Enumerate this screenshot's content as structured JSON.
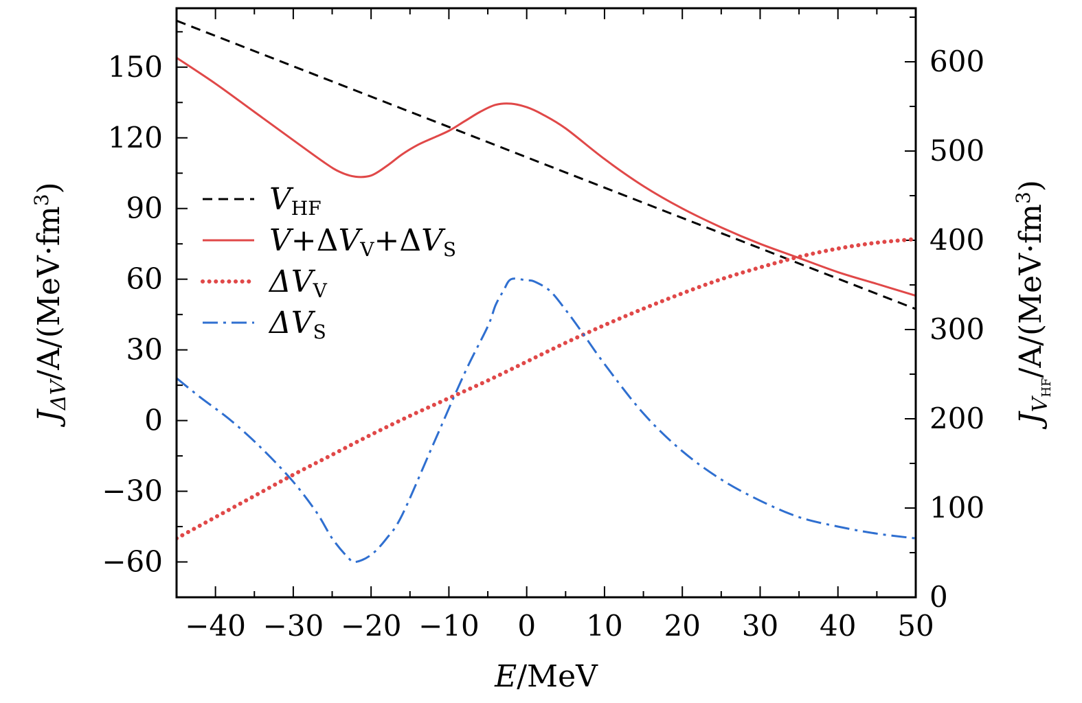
{
  "chart_data": {
    "type": "line",
    "title": "",
    "x": {
      "label_var": "E",
      "label_unit": "/MeV",
      "range": [
        -45,
        50
      ],
      "ticks": [
        -40,
        -30,
        -20,
        -10,
        0,
        10,
        20,
        30,
        40,
        50
      ],
      "tick_labels": [
        "−40",
        "−30",
        "−20",
        "−10",
        "0",
        "10",
        "20",
        "30",
        "40",
        "50"
      ]
    },
    "y_left": {
      "label_prefix": "J",
      "label_sub": "ΔV",
      "label_suffix": "/A/(MeV·fm",
      "label_sup": "3",
      "label_close": ")",
      "range": [
        -75,
        175
      ],
      "ticks": [
        -60,
        -30,
        0,
        30,
        60,
        90,
        120,
        150
      ],
      "tick_labels": [
        "−60",
        "−30",
        "0",
        "30",
        "60",
        "90",
        "120",
        "150"
      ]
    },
    "y_right": {
      "label_prefix": "J",
      "label_sub": "V",
      "label_subsub": "HF",
      "label_suffix": "/A/(MeV·fm",
      "label_sup": "3",
      "label_close": ")",
      "range": [
        0,
        660
      ],
      "ticks": [
        0,
        100,
        200,
        300,
        400,
        500,
        600
      ],
      "tick_labels": [
        "0",
        "100",
        "200",
        "300",
        "400",
        "500",
        "600"
      ]
    },
    "series": [
      {
        "id": "vhf",
        "name": "V_HF",
        "legend_main": "V",
        "legend_sub": "HF",
        "axis": "right",
        "style": "dashed",
        "color": "#000000",
        "x": [
          -45,
          50
        ],
        "y": [
          646,
          323
        ]
      },
      {
        "id": "total",
        "name": "V+ΔV_V+ΔV_S",
        "legend_parts": [
          "V",
          "+Δ",
          "V",
          "V",
          "+Δ",
          "V",
          "S"
        ],
        "axis": "left",
        "style": "solid",
        "color": "#e04848",
        "x": [
          -45,
          -40,
          -35,
          -30,
          -26,
          -24,
          -22,
          -20,
          -18,
          -16,
          -14,
          -12,
          -10,
          -8,
          -6,
          -4,
          -2,
          0,
          2,
          5,
          10,
          15,
          20,
          25,
          30,
          35,
          40,
          45,
          50
        ],
        "y": [
          154,
          143,
          131,
          119,
          109.5,
          105.5,
          103.5,
          104,
          108,
          113,
          117,
          120,
          123,
          127,
          131,
          134,
          134.5,
          133,
          130,
          124,
          111,
          99.5,
          90,
          82,
          75,
          69,
          63,
          58,
          53
        ]
      },
      {
        "id": "dvv",
        "name": "ΔV_V",
        "legend_main": "ΔV",
        "legend_sub": "V",
        "axis": "left",
        "style": "dotted",
        "color": "#e04848",
        "x": [
          -45,
          -40,
          -35,
          -30,
          -25,
          -20,
          -15,
          -10,
          -5,
          0,
          5,
          10,
          15,
          20,
          25,
          30,
          35,
          40,
          45,
          50
        ],
        "y": [
          -50,
          -41,
          -32,
          -23,
          -14.5,
          -6,
          2,
          9.5,
          17,
          25,
          33,
          40.5,
          47.5,
          54,
          60,
          65,
          69.5,
          73,
          75.5,
          77
        ]
      },
      {
        "id": "dvs",
        "name": "ΔV_S",
        "legend_main": "ΔV",
        "legend_sub": "S",
        "axis": "left",
        "style": "dashdot",
        "color": "#2f6fd0",
        "x": [
          -45,
          -42,
          -38,
          -34,
          -30,
          -27,
          -25,
          -23,
          -22,
          -20,
          -18,
          -16,
          -12,
          -8,
          -5,
          -4,
          -3,
          -2,
          0,
          1,
          3,
          5,
          7,
          10,
          15,
          20,
          25,
          30,
          35,
          40,
          45,
          50
        ],
        "y": [
          18,
          10,
          0,
          -12,
          -26,
          -39,
          -50,
          -58,
          -60,
          -57,
          -50,
          -40,
          -10,
          20,
          40,
          49,
          55,
          60,
          59.5,
          59,
          55,
          47,
          38,
          24,
          3,
          -13,
          -25,
          -34,
          -41,
          -45,
          -48,
          -50
        ]
      }
    ],
    "legend_position": "left-center"
  }
}
